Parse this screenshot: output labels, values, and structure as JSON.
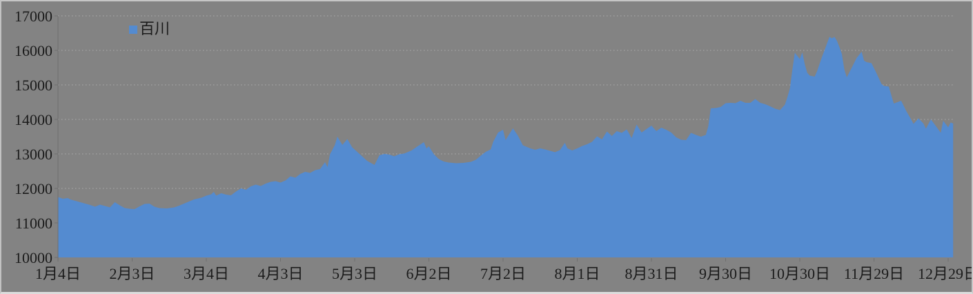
{
  "chart_data": {
    "type": "area",
    "title": "",
    "legend": [
      "百川"
    ],
    "legend_position": "top-left-inside",
    "grid": "horizontal-dotted",
    "x_axis": {
      "unit": "date",
      "tick_interval_days": 30,
      "tick_labels": [
        "1月4日",
        "2月3日",
        "3月4日",
        "4月3日",
        "5月3日",
        "6月2日",
        "7月2日",
        "8月1日",
        "8月31日",
        "9月30日",
        "10月30日",
        "11月29日",
        "12月29日"
      ],
      "tick_days": [
        0,
        30,
        60,
        90,
        120,
        150,
        180,
        210,
        240,
        270,
        300,
        330,
        360
      ]
    },
    "y_axis": {
      "min": 10000,
      "max": 17000,
      "step": 1000,
      "tick_labels": [
        "17000",
        "16000",
        "15000",
        "14000",
        "13000",
        "12000",
        "11000",
        "10000"
      ]
    },
    "series": [
      {
        "name": "百川",
        "points": [
          [
            0,
            11750
          ],
          [
            2,
            11700
          ],
          [
            4,
            11720
          ],
          [
            5,
            11680
          ],
          [
            7,
            11640
          ],
          [
            9,
            11600
          ],
          [
            11,
            11560
          ],
          [
            13,
            11520
          ],
          [
            15,
            11470
          ],
          [
            17,
            11530
          ],
          [
            19,
            11490
          ],
          [
            21,
            11450
          ],
          [
            23,
            11600
          ],
          [
            25,
            11510
          ],
          [
            27,
            11430
          ],
          [
            29,
            11410
          ],
          [
            31,
            11400
          ],
          [
            33,
            11480
          ],
          [
            35,
            11550
          ],
          [
            37,
            11560
          ],
          [
            39,
            11470
          ],
          [
            41,
            11430
          ],
          [
            44,
            11420
          ],
          [
            47,
            11450
          ],
          [
            49,
            11500
          ],
          [
            52,
            11590
          ],
          [
            55,
            11680
          ],
          [
            58,
            11730
          ],
          [
            60,
            11790
          ],
          [
            62,
            11830
          ],
          [
            63,
            11900
          ],
          [
            64,
            11790
          ],
          [
            66,
            11860
          ],
          [
            68,
            11820
          ],
          [
            70,
            11800
          ],
          [
            72,
            11910
          ],
          [
            74,
            12000
          ],
          [
            76,
            11960
          ],
          [
            78,
            12060
          ],
          [
            80,
            12110
          ],
          [
            82,
            12070
          ],
          [
            84,
            12140
          ],
          [
            86,
            12190
          ],
          [
            88,
            12210
          ],
          [
            90,
            12170
          ],
          [
            92,
            12230
          ],
          [
            94,
            12350
          ],
          [
            96,
            12310
          ],
          [
            98,
            12420
          ],
          [
            100,
            12480
          ],
          [
            102,
            12450
          ],
          [
            104,
            12530
          ],
          [
            106,
            12560
          ],
          [
            108,
            12760
          ],
          [
            109,
            12620
          ],
          [
            110,
            12990
          ],
          [
            112,
            13260
          ],
          [
            113,
            13500
          ],
          [
            115,
            13260
          ],
          [
            117,
            13430
          ],
          [
            119,
            13190
          ],
          [
            121,
            13060
          ],
          [
            123,
            12930
          ],
          [
            125,
            12800
          ],
          [
            127,
            12720
          ],
          [
            128,
            12680
          ],
          [
            130,
            12960
          ],
          [
            132,
            13000
          ],
          [
            134,
            12980
          ],
          [
            136,
            12930
          ],
          [
            138,
            12990
          ],
          [
            140,
            13010
          ],
          [
            143,
            13100
          ],
          [
            145,
            13200
          ],
          [
            148,
            13340
          ],
          [
            149,
            13160
          ],
          [
            150,
            13220
          ],
          [
            152,
            12990
          ],
          [
            154,
            12850
          ],
          [
            156,
            12780
          ],
          [
            158,
            12750
          ],
          [
            161,
            12730
          ],
          [
            164,
            12740
          ],
          [
            167,
            12770
          ],
          [
            169,
            12830
          ],
          [
            171,
            12950
          ],
          [
            173,
            13060
          ],
          [
            175,
            13130
          ],
          [
            176,
            13350
          ],
          [
            178,
            13620
          ],
          [
            180,
            13700
          ],
          [
            181,
            13400
          ],
          [
            184,
            13740
          ],
          [
            186,
            13530
          ],
          [
            188,
            13250
          ],
          [
            191,
            13160
          ],
          [
            193,
            13120
          ],
          [
            195,
            13160
          ],
          [
            197,
            13130
          ],
          [
            199,
            13090
          ],
          [
            201,
            13050
          ],
          [
            203,
            13110
          ],
          [
            205,
            13320
          ],
          [
            206,
            13160
          ],
          [
            208,
            13100
          ],
          [
            210,
            13160
          ],
          [
            212,
            13230
          ],
          [
            214,
            13280
          ],
          [
            216,
            13350
          ],
          [
            218,
            13510
          ],
          [
            220,
            13420
          ],
          [
            222,
            13650
          ],
          [
            224,
            13520
          ],
          [
            226,
            13660
          ],
          [
            228,
            13610
          ],
          [
            230,
            13710
          ],
          [
            232,
            13460
          ],
          [
            234,
            13850
          ],
          [
            236,
            13620
          ],
          [
            238,
            13720
          ],
          [
            240,
            13820
          ],
          [
            242,
            13660
          ],
          [
            244,
            13760
          ],
          [
            246,
            13700
          ],
          [
            248,
            13620
          ],
          [
            250,
            13480
          ],
          [
            252,
            13410
          ],
          [
            254,
            13400
          ],
          [
            256,
            13610
          ],
          [
            258,
            13550
          ],
          [
            260,
            13500
          ],
          [
            262,
            13550
          ],
          [
            263,
            13800
          ],
          [
            264,
            14320
          ],
          [
            266,
            14330
          ],
          [
            268,
            14360
          ],
          [
            270,
            14470
          ],
          [
            272,
            14480
          ],
          [
            274,
            14470
          ],
          [
            276,
            14540
          ],
          [
            278,
            14480
          ],
          [
            280,
            14480
          ],
          [
            282,
            14590
          ],
          [
            284,
            14480
          ],
          [
            286,
            14440
          ],
          [
            288,
            14380
          ],
          [
            290,
            14310
          ],
          [
            292,
            14270
          ],
          [
            294,
            14430
          ],
          [
            295,
            14650
          ],
          [
            296,
            14900
          ],
          [
            297,
            15450
          ],
          [
            298,
            15930
          ],
          [
            299,
            15840
          ],
          [
            300,
            15750
          ],
          [
            301,
            15940
          ],
          [
            302,
            15600
          ],
          [
            303,
            15350
          ],
          [
            304,
            15270
          ],
          [
            306,
            15240
          ],
          [
            307,
            15400
          ],
          [
            309,
            15820
          ],
          [
            310,
            16000
          ],
          [
            311,
            16200
          ],
          [
            312,
            16390
          ],
          [
            313,
            16350
          ],
          [
            314,
            16390
          ],
          [
            315,
            16280
          ],
          [
            316,
            16100
          ],
          [
            317,
            15900
          ],
          [
            318,
            15450
          ],
          [
            319,
            15220
          ],
          [
            321,
            15500
          ],
          [
            323,
            15780
          ],
          [
            325,
            15960
          ],
          [
            326,
            15700
          ],
          [
            327,
            15660
          ],
          [
            329,
            15630
          ],
          [
            331,
            15340
          ],
          [
            333,
            15030
          ],
          [
            334,
            14970
          ],
          [
            336,
            14950
          ],
          [
            337,
            14700
          ],
          [
            338,
            14460
          ],
          [
            341,
            14540
          ],
          [
            343,
            14250
          ],
          [
            345,
            14000
          ],
          [
            346,
            13870
          ],
          [
            348,
            14030
          ],
          [
            350,
            13880
          ],
          [
            351,
            13730
          ],
          [
            353,
            14000
          ],
          [
            355,
            13810
          ],
          [
            357,
            13610
          ],
          [
            358,
            13960
          ],
          [
            360,
            13770
          ],
          [
            361,
            13910
          ],
          [
            362,
            13880
          ]
        ]
      }
    ],
    "colors": {
      "area": "#548BD0",
      "background": "#838383",
      "grid": "#ACACAC",
      "axis": "#6F6F6F",
      "text": "#1B1B1B"
    }
  }
}
